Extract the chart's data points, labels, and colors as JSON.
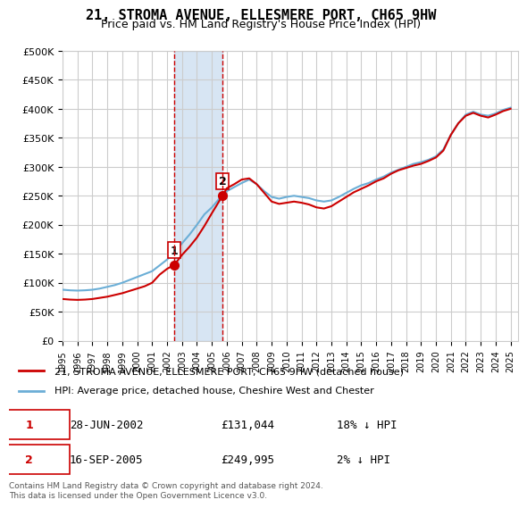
{
  "title": "21, STROMA AVENUE, ELLESMERE PORT, CH65 9HW",
  "subtitle": "Price paid vs. HM Land Registry's House Price Index (HPI)",
  "legend_line1": "21, STROMA AVENUE, ELLESMERE PORT, CH65 9HW (detached house)",
  "legend_line2": "HPI: Average price, detached house, Cheshire West and Chester",
  "footer": "Contains HM Land Registry data © Crown copyright and database right 2024.\nThis data is licensed under the Open Government Licence v3.0.",
  "sale1_label": "1",
  "sale1_date": "28-JUN-2002",
  "sale1_price": "£131,044",
  "sale1_hpi": "18% ↓ HPI",
  "sale1_year": 2002.49,
  "sale1_value": 131044,
  "sale2_label": "2",
  "sale2_date": "16-SEP-2005",
  "sale2_price": "£249,995",
  "sale2_hpi": "2% ↓ HPI",
  "sale2_year": 2005.71,
  "sale2_value": 249995,
  "hpi_color": "#6baed6",
  "sale_color": "#cc0000",
  "shaded_color": "#c6dbef",
  "vline_color": "#cc0000",
  "grid_color": "#cccccc",
  "background_color": "#ffffff",
  "ylim": [
    0,
    500000
  ],
  "xlim_start": 1995,
  "xlim_end": 2025.5
}
